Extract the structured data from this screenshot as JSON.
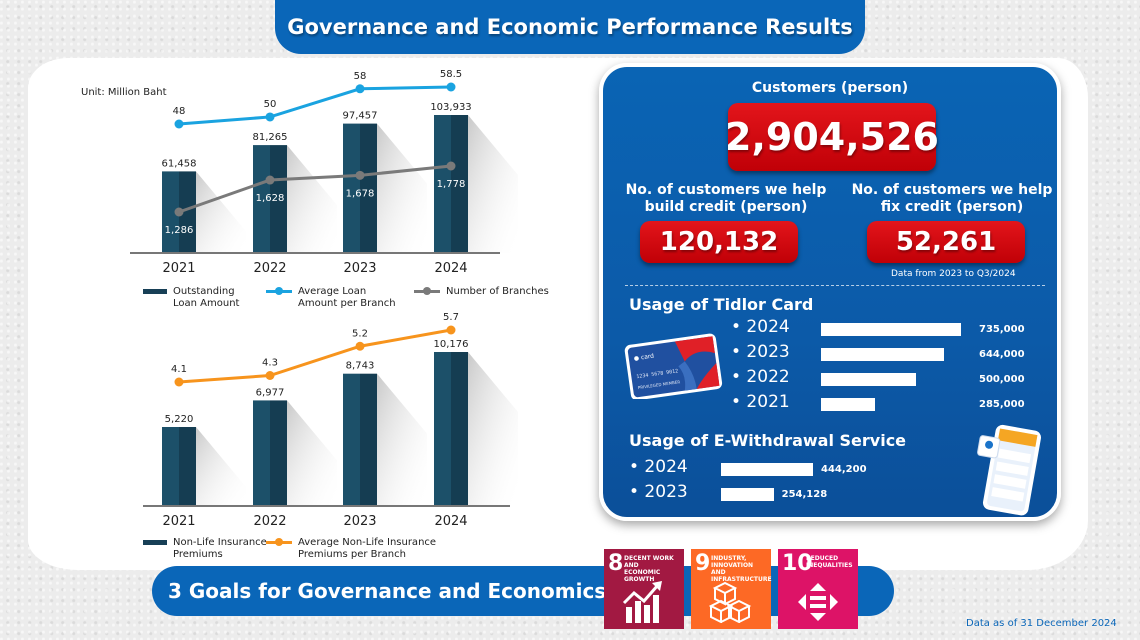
{
  "title": "Governance and Economic Performance Results",
  "unit_label": "Unit: Million Baht",
  "chart_data": [
    {
      "type": "bar",
      "categories": [
        "2021",
        "2022",
        "2023",
        "2024"
      ],
      "series": [
        {
          "name": "Outstanding Loan Amount",
          "kind": "bar",
          "values": [
            61458,
            81265,
            97457,
            103933
          ],
          "labels": [
            "61,458",
            "81,265",
            "97,457",
            "103,933"
          ],
          "color": "#173f56"
        },
        {
          "name": "Average Loan Amount per Branch",
          "kind": "line",
          "values": [
            48,
            50,
            58,
            58.5
          ],
          "labels": [
            "48",
            "50",
            "58",
            "58.5"
          ],
          "color": "#1aa3e0"
        },
        {
          "name": "Number of Branches",
          "kind": "line",
          "values": [
            1286,
            1628,
            1678,
            1778
          ],
          "labels": [
            "1,286",
            "1,628",
            "1,678",
            "1,778"
          ],
          "color": "#7a7a7a"
        }
      ],
      "legend": [
        "Outstanding Loan Amount",
        "Average Loan Amount per Branch",
        "Number of Branches"
      ],
      "legend_placement": "bottom",
      "title": "",
      "xlabel": "",
      "ylabel": "",
      "grid": false
    },
    {
      "type": "bar",
      "categories": [
        "2021",
        "2022",
        "2023",
        "2024"
      ],
      "series": [
        {
          "name": "Non-Life Insurance Premiums",
          "kind": "bar",
          "values": [
            5220,
            6977,
            8743,
            10176
          ],
          "labels": [
            "5,220",
            "6,977",
            "8,743",
            "10,176"
          ],
          "color": "#173f56"
        },
        {
          "name": "Average Non-Life Insurance Premiums per Branch",
          "kind": "line",
          "values": [
            4.1,
            4.3,
            5.2,
            5.7
          ],
          "labels": [
            "4.1",
            "4.3",
            "5.2",
            "5.7"
          ],
          "color": "#f7941d"
        }
      ],
      "legend": [
        "Non-Life Insurance Premiums",
        "Average Non-Life Insurance Premiums per Branch"
      ],
      "legend_placement": "bottom",
      "title": "",
      "xlabel": "",
      "ylabel": "",
      "grid": false
    },
    {
      "type": "bar",
      "title": "Usage of Tidlor Card",
      "orientation": "horizontal",
      "categories": [
        "2024",
        "2023",
        "2022",
        "2021"
      ],
      "values": [
        735000,
        644000,
        500000,
        285000
      ],
      "labels": [
        "735,000",
        "644,000",
        "500,000",
        "285,000"
      ]
    },
    {
      "type": "bar",
      "title": "Usage of E-Withdrawal Service",
      "orientation": "horizontal",
      "categories": [
        "2024",
        "2023"
      ],
      "values": [
        444200,
        254128
      ],
      "labels": [
        "444,200",
        "254,128"
      ]
    }
  ],
  "legend1": {
    "item1": [
      "Outstanding",
      "Loan Amount"
    ],
    "item2": [
      "Average Loan",
      "Amount per Branch"
    ],
    "item3": "Number of Branches"
  },
  "legend2": {
    "item1": [
      "Non-Life Insurance",
      "Premiums"
    ],
    "item2": [
      "Average Non-Life Insurance",
      "Premiums per Branch"
    ]
  },
  "panel": {
    "customers_title": "Customers (person)",
    "customers_value": "2,904,526",
    "build_title": [
      "No. of customers we help",
      "build credit (person)"
    ],
    "build_value": "120,132",
    "fix_title": [
      "No. of customers we help",
      "fix credit (person)"
    ],
    "fix_value": "52,261",
    "data_note": "Data from 2023 to Q3/2024",
    "card_title": "Usage of Tidlor Card",
    "ew_title": "Usage of E-Withdrawal Service",
    "bullet": "•"
  },
  "goals": {
    "title": "3 Goals for Governance and Economics",
    "sdgs": [
      {
        "num": "8",
        "label": [
          "DECENT WORK AND",
          "ECONOMIC GROWTH"
        ],
        "color": "#a21942",
        "icon": "growth-chart-icon"
      },
      {
        "num": "9",
        "label": [
          "INDUSTRY, INNOVATION",
          "AND INFRASTRUCTURE"
        ],
        "color": "#fd6925",
        "icon": "cubes-icon"
      },
      {
        "num": "10",
        "label": [
          "REDUCED",
          "INEQUALITIES"
        ],
        "color": "#dd1367",
        "icon": "equality-arrows-icon"
      }
    ]
  },
  "footer_note": "Data as of 31 December 2024"
}
